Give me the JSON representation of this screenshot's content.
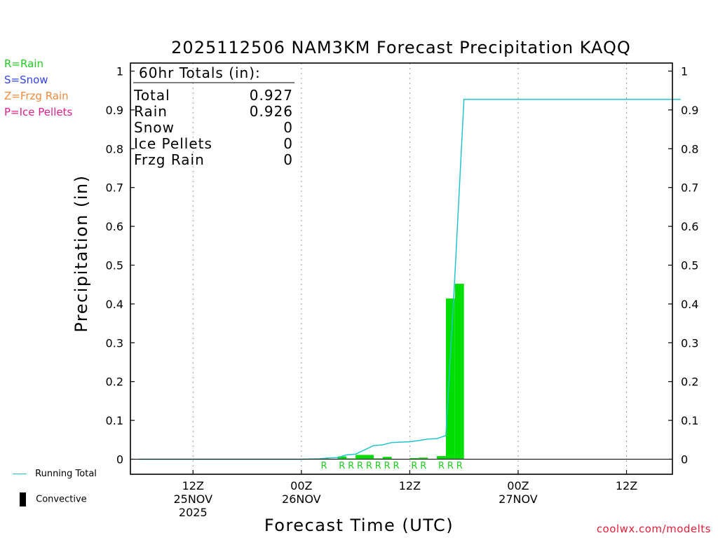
{
  "chart_data": {
    "type": "bar",
    "title": "2025112506 NAM3KM Forecast Precipitation KAQQ",
    "xlabel": "Forecast Time (UTC)",
    "ylabel": "Precipitation (in)",
    "ylim": [
      0,
      1
    ],
    "yticks": [
      "0",
      "0.1",
      "0.2",
      "0.3",
      "0.4",
      "0.5",
      "0.6",
      "0.7",
      "0.8",
      "0.9",
      "1"
    ],
    "grid": "vertical dotted",
    "xaxis": {
      "start_hour": 0,
      "end_hour": 60,
      "ticks": [
        {
          "hour": 6,
          "label1": "12Z",
          "label2": "25NOV",
          "label3": "2025"
        },
        {
          "hour": 18,
          "label1": "00Z",
          "label2": "26NOV",
          "label3": ""
        },
        {
          "hour": 30,
          "label1": "12Z",
          "label2": "",
          "label3": ""
        },
        {
          "hour": 42,
          "label1": "00Z",
          "label2": "27NOV",
          "label3": ""
        },
        {
          "hour": 54,
          "label1": "12Z",
          "label2": "",
          "label3": ""
        }
      ]
    },
    "bars": [
      {
        "hour": 21,
        "value": 0.002,
        "type": "R"
      },
      {
        "hour": 22,
        "value": 0.001,
        "type": ""
      },
      {
        "hour": 23,
        "value": 0.007,
        "type": "R"
      },
      {
        "hour": 24,
        "value": 0.002,
        "type": "R"
      },
      {
        "hour": 25,
        "value": 0.011,
        "type": "R"
      },
      {
        "hour": 26,
        "value": 0.011,
        "type": "R"
      },
      {
        "hour": 27,
        "value": 0.002,
        "type": "R"
      },
      {
        "hour": 28,
        "value": 0.006,
        "type": "R"
      },
      {
        "hour": 29,
        "value": 0.001,
        "type": "R"
      },
      {
        "hour": 30,
        "value": 0.001,
        "type": ""
      },
      {
        "hour": 31,
        "value": 0.003,
        "type": "R"
      },
      {
        "hour": 32,
        "value": 0.004,
        "type": "R"
      },
      {
        "hour": 33,
        "value": 0.001,
        "type": ""
      },
      {
        "hour": 34,
        "value": 0.008,
        "type": "R"
      },
      {
        "hour": 35,
        "value": 0.414,
        "type": "R"
      },
      {
        "hour": 36,
        "value": 0.452,
        "type": "R"
      }
    ],
    "running_total": {
      "name": "Running Total",
      "points": [
        [
          0,
          0
        ],
        [
          18,
          0
        ],
        [
          20,
          0.001
        ],
        [
          21,
          0.003
        ],
        [
          22,
          0.004
        ],
        [
          23,
          0.011
        ],
        [
          24,
          0.013
        ],
        [
          25,
          0.024
        ],
        [
          26,
          0.035
        ],
        [
          27,
          0.037
        ],
        [
          28,
          0.043
        ],
        [
          29,
          0.044
        ],
        [
          30,
          0.045
        ],
        [
          31,
          0.048
        ],
        [
          32,
          0.052
        ],
        [
          33,
          0.053
        ],
        [
          34,
          0.061
        ],
        [
          35,
          0.475
        ],
        [
          36,
          0.927
        ],
        [
          60,
          0.927
        ]
      ]
    },
    "totals_box": {
      "header": "60hr Totals (in):",
      "rows": [
        {
          "label": "Total",
          "value": "0.927"
        },
        {
          "label": "Rain",
          "value": "0.926"
        },
        {
          "label": "Snow",
          "value": "0"
        },
        {
          "label": "Ice Pellets",
          "value": "0"
        },
        {
          "label": "Frzg Rain",
          "value": "0"
        }
      ]
    }
  },
  "type_legend": [
    {
      "text": "R=Rain",
      "color": "#22cc22"
    },
    {
      "text": "S=Snow",
      "color": "#3344ee"
    },
    {
      "text": "Z=Frzg Rain",
      "color": "#f08a3c"
    },
    {
      "text": "P=Ice Pellets",
      "color": "#e0208a"
    }
  ],
  "series_legend": {
    "running_total": "Running Total",
    "convective": "Convective"
  },
  "credit": "coolwx.com/modelts",
  "colors": {
    "bar": "#00dd00",
    "line": "#22c4cc",
    "type_label": "#22cc22",
    "credit": "#e0203a",
    "grid": "#9a9a9a"
  }
}
